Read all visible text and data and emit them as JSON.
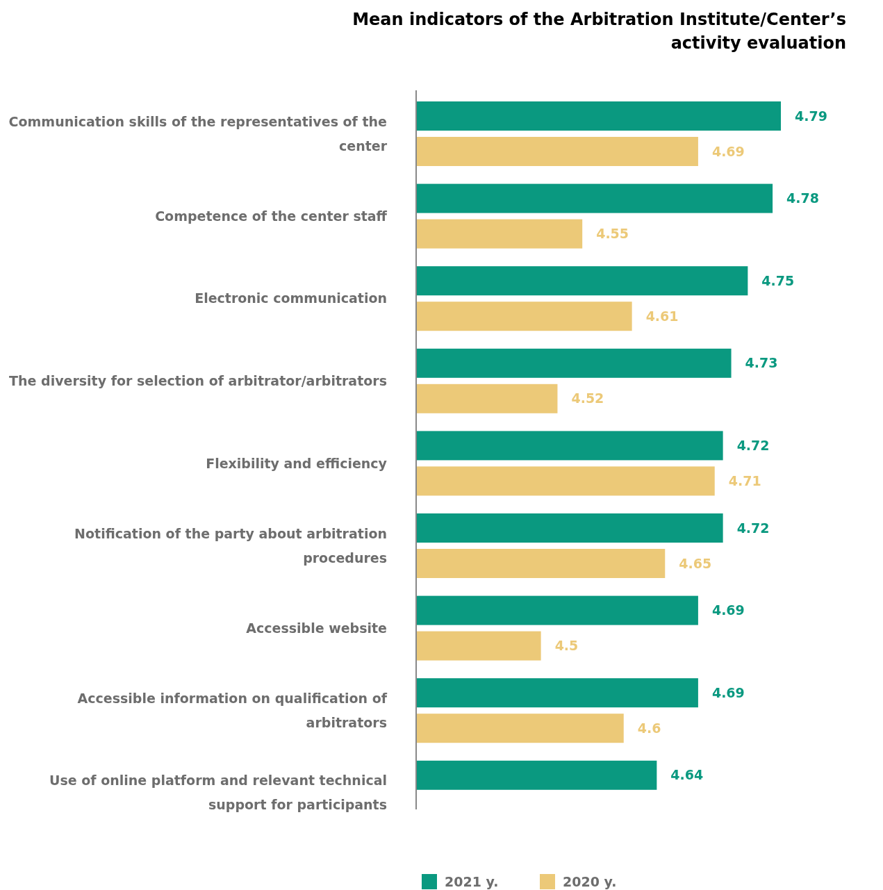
{
  "chart_data": {
    "type": "bar",
    "orientation": "horizontal",
    "title": "Mean indicators of the Arbitration Institute/Center’s activity evaluation",
    "categories": [
      "Communication skills of the representatives of the center",
      "Competence of the center staff",
      "Electronic communication",
      "The diversity for selection of arbitrator/arbitrators",
      "Flexibility and efficiency",
      "Notification of the party about arbitration procedures",
      "Accessible website",
      "Accessible information on qualification of arbitrators",
      "Use of online platform and relevant technical support for participants"
    ],
    "series": [
      {
        "name": "2021 y.",
        "color": "#0a9980",
        "values": [
          4.79,
          4.78,
          4.75,
          4.73,
          4.72,
          4.72,
          4.69,
          4.69,
          4.64
        ]
      },
      {
        "name": "2020 y.",
        "color": "#ecc978",
        "values": [
          4.69,
          4.55,
          4.61,
          4.52,
          4.71,
          4.65,
          4.5,
          4.6,
          null
        ]
      }
    ],
    "xlim": [
      4.35,
      4.79
    ],
    "data_labels": true,
    "legend": "bottom",
    "tick_labels": "y"
  }
}
